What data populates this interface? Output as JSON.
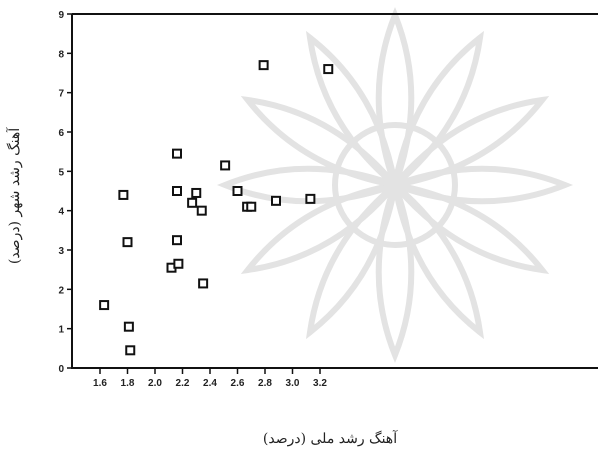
{
  "chart_data": {
    "type": "scatter",
    "title": "",
    "xlabel": "آهنگ رشد ملی (درصد)",
    "ylabel": "(آهنگ رشد شهر (درصد",
    "xlim": [
      1.5,
      3.3
    ],
    "ylim": [
      0,
      9
    ],
    "xticks": [
      1.6,
      1.8,
      2.0,
      2.2,
      2.4,
      2.6,
      2.8,
      3.0,
      3.2
    ],
    "xtick_labels": [
      "1.6",
      "1.8",
      "2.0",
      "2.2",
      "2.4",
      "2.6",
      "2.8",
      "3.0",
      "3.2"
    ],
    "yticks": [
      0,
      1,
      2,
      3,
      4,
      5,
      6,
      7,
      8,
      9
    ],
    "ytick_labels": [
      "0",
      "1",
      "2",
      "3",
      "4",
      "5",
      "6",
      "7",
      "8",
      "9"
    ],
    "grid": false,
    "marker": "hollow-square",
    "points": [
      {
        "x": 1.63,
        "y": 1.6
      },
      {
        "x": 1.77,
        "y": 4.4
      },
      {
        "x": 1.8,
        "y": 3.2
      },
      {
        "x": 1.81,
        "y": 1.05
      },
      {
        "x": 1.82,
        "y": 0.45
      },
      {
        "x": 2.12,
        "y": 2.55
      },
      {
        "x": 2.16,
        "y": 5.45
      },
      {
        "x": 2.16,
        "y": 4.5
      },
      {
        "x": 2.16,
        "y": 3.25
      },
      {
        "x": 2.17,
        "y": 2.65
      },
      {
        "x": 2.27,
        "y": 4.2
      },
      {
        "x": 2.3,
        "y": 4.45
      },
      {
        "x": 2.34,
        "y": 4.0
      },
      {
        "x": 2.35,
        "y": 2.15
      },
      {
        "x": 2.51,
        "y": 5.15
      },
      {
        "x": 2.6,
        "y": 4.5
      },
      {
        "x": 2.67,
        "y": 4.1
      },
      {
        "x": 2.7,
        "y": 4.1
      },
      {
        "x": 2.79,
        "y": 7.7
      },
      {
        "x": 2.88,
        "y": 4.25
      },
      {
        "x": 3.13,
        "y": 4.3
      },
      {
        "x": 3.26,
        "y": 7.6
      }
    ]
  }
}
